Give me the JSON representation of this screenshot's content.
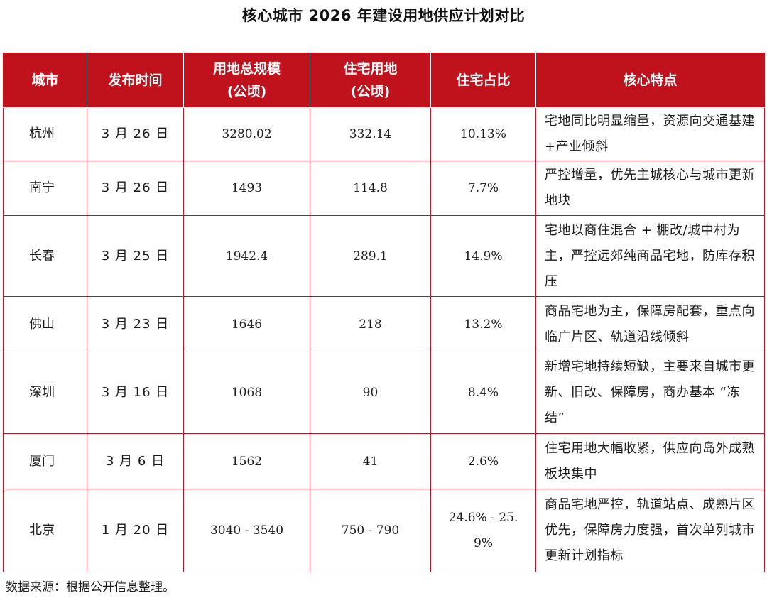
{
  "title": "核心城市 2026 年建设用地供应计划对比",
  "headers": {
    "city": "城市",
    "release_time": "发布时间",
    "total_scale_line1": "用地总规模",
    "total_scale_line2": "(公顷)",
    "residential_line1": "住宅用地",
    "residential_line2": "(公顷)",
    "ratio": "住宅占比",
    "features": "核心特点"
  },
  "rows": [
    {
      "city": "杭州",
      "date": "3 月 26 日",
      "total": "3280.02",
      "residential": "332.14",
      "ratio": "10.13%",
      "features": "宅地同比明显缩量，资源向交通基建+产业倾斜"
    },
    {
      "city": "南宁",
      "date": "3 月 26 日",
      "total": "1493",
      "residential": "114.8",
      "ratio": "7.7%",
      "features": "严控增量，优先主城核心与城市更新地块"
    },
    {
      "city": "长春",
      "date": "3 月 25 日",
      "total": "1942.4",
      "residential": "289.1",
      "ratio": "14.9%",
      "features": "宅地以商住混合 + 棚改/城中村为主，严控远郊纯商品宅地，防库存积压"
    },
    {
      "city": "佛山",
      "date": "3 月 23 日",
      "total": "1646",
      "residential": "218",
      "ratio": "13.2%",
      "features": "商品宅地为主，保障房配套，重点向临广片区、轨道沿线倾斜"
    },
    {
      "city": "深圳",
      "date": "3 月 16 日",
      "total": "1068",
      "residential": "90",
      "ratio": "8.4%",
      "features": "新增宅地持续短缺，主要来自城市更新、旧改、保障房，商办基本 “冻结”"
    },
    {
      "city": "厦门",
      "date": "3 月 6 日",
      "total": "1562",
      "residential": "41",
      "ratio": "2.6%",
      "features": "住宅用地大幅收紧，供应向岛外成熟板块集中"
    },
    {
      "city": "北京",
      "date": "1 月 20 日",
      "total": "3040 - 3540",
      "residential": "750 - 790",
      "ratio": "24.6% - 25.9%",
      "features": "商品宅地严控，轨道站点、成熟片区优先，保障房力度强，首次单列城市更新计划指标"
    }
  ],
  "source": "数据来源：根据公开信息整理。",
  "colors": {
    "header_bg": "#c0121c",
    "border": "#c0121c",
    "header_text": "#ffffff"
  }
}
